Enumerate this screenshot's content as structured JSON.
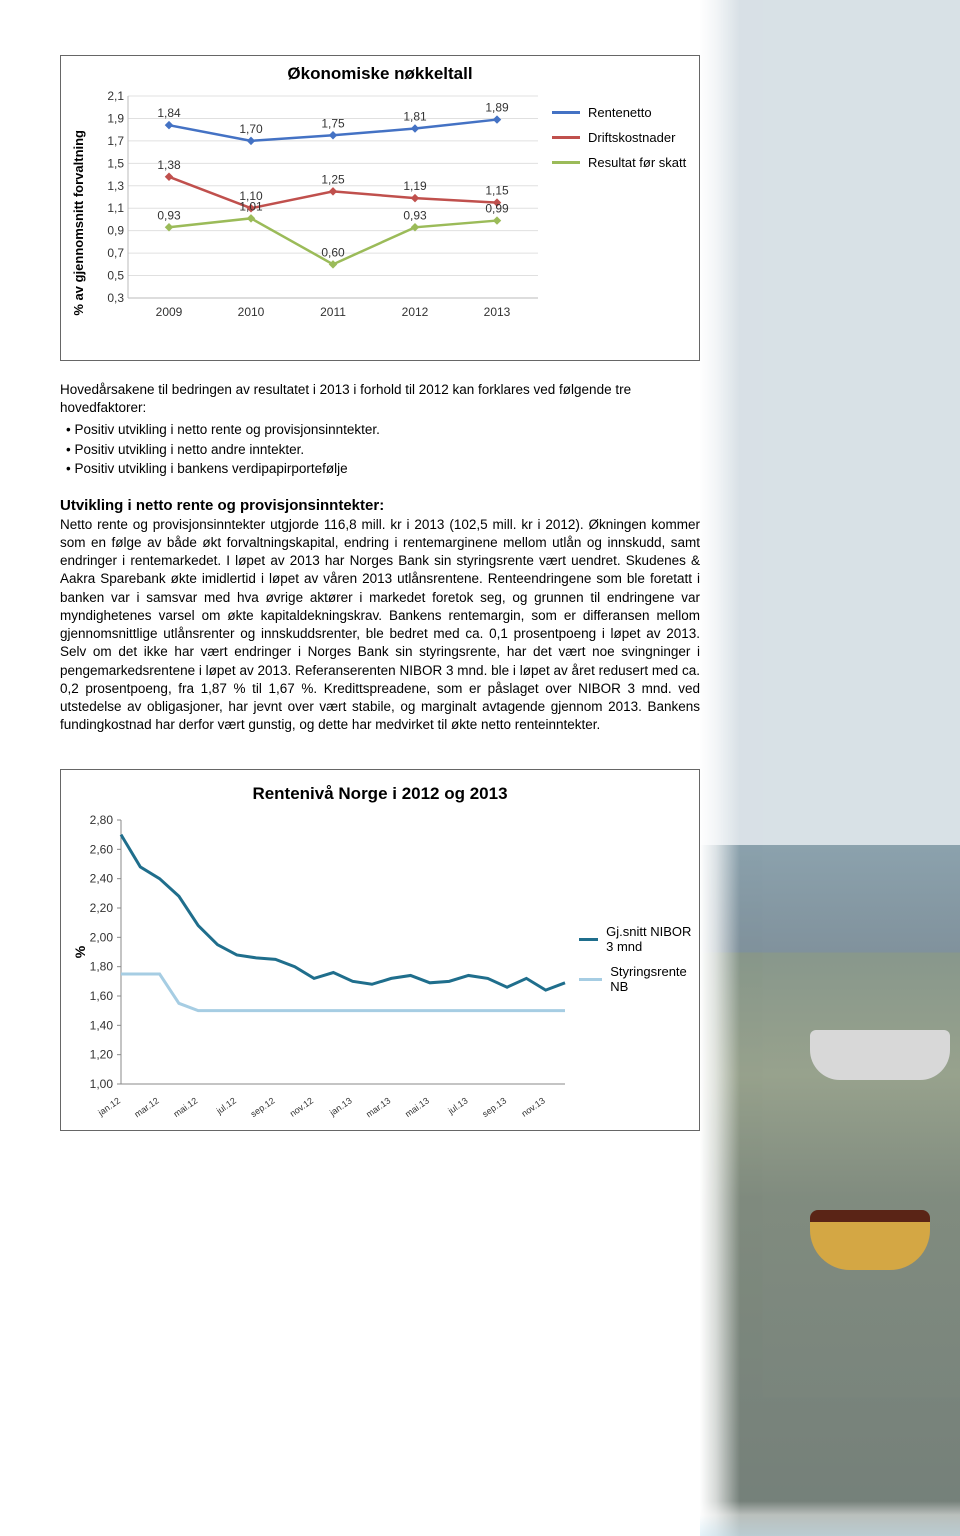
{
  "chart1": {
    "title": "Økonomiske nøkkeltall",
    "ylabel": "% av gjennomsnitt forvaltning",
    "categories": [
      "2009",
      "2010",
      "2011",
      "2012",
      "2013"
    ],
    "ylim": [
      0.3,
      2.1
    ],
    "ytick_step": 0.2,
    "yticks": [
      "2,1",
      "1,9",
      "1,7",
      "1,5",
      "1,3",
      "1,1",
      "0,9",
      "0,7",
      "0,5",
      "0,3"
    ],
    "series": [
      {
        "name": "Rentenetto",
        "color": "#4472c4",
        "values": [
          1.84,
          1.7,
          1.75,
          1.81,
          1.89
        ],
        "labels": [
          "1,84",
          "1,70",
          "1,75",
          "1,81",
          "1,89"
        ]
      },
      {
        "name": "Driftskostnader",
        "color": "#c0504d",
        "values": [
          1.38,
          1.1,
          1.25,
          1.19,
          1.15
        ],
        "labels": [
          "1,38",
          "1,10",
          "1,25",
          "1,19",
          "1,15"
        ]
      },
      {
        "name": "Resultat før skatt",
        "color": "#9bbb59",
        "values": [
          0.93,
          1.01,
          0.6,
          0.93,
          0.99
        ],
        "labels": [
          "0,93",
          "1,01",
          "0,60",
          "0,93",
          "0,99"
        ]
      }
    ],
    "legend_labels": [
      "Rentenetto",
      "Driftskostnader",
      "Resultat før skatt"
    ]
  },
  "intro": "Hovedårsakene til bedringen av resultatet i 2013 i forhold til 2012 kan forklares ved følgende tre hovedfaktorer:",
  "bullets": [
    "Positiv utvikling i netto rente og provisjonsinntekter.",
    "Positiv utvikling i netto andre inntekter.",
    "Positiv utvikling i bankens verdipapirportefølje"
  ],
  "section": {
    "heading": "Utvikling i netto rente og provisjonsinntekter:",
    "body": "Netto rente og provisjonsinntekter utgjorde 116,8 mill. kr i 2013 (102,5 mill. kr i 2012). Økningen kommer som en følge av både økt forvaltningskapital, endring i rentemarginene mellom utlån og innskudd, samt endringer i rentemarkedet. I løpet av 2013 har Norges Bank sin styringsrente vært uendret. Skudenes & Aakra Sparebank økte imidlertid i løpet av våren 2013 utlånsrentene. Renteendringene som ble foretatt i banken var i samsvar med hva øvrige aktører i markedet foretok seg, og grunnen til endringene var myndighetenes varsel om økte kapitaldekningskrav. Bankens rentemargin, som er differansen mellom gjennomsnittlige utlånsrenter og innskuddsrenter, ble bedret med ca. 0,1 prosentpoeng i løpet av 2013. Selv om det ikke har vært endringer i Norges Bank sin styringsrente, har det vært noe svingninger i pengemarkedsrentene i løpet av 2013. Referanserenten NIBOR 3 mnd. ble i løpet av året redusert med ca. 0,2 prosentpoeng, fra 1,87 % til 1,67 %. Kredittspreadene, som er påslaget over NIBOR 3 mnd. ved utstedelse av obligasjoner, har jevnt over vært stabile, og marginalt avtagende gjennom 2013. Bankens fundingkostnad har derfor vært gunstig, og dette har medvirket til økte netto renteinntekter."
  },
  "chart2": {
    "title": "Rentenivå Norge i 2012 og 2013",
    "ylabel": "%",
    "ylim": [
      1.0,
      2.8
    ],
    "yticks": [
      "2,80",
      "2,60",
      "2,40",
      "2,20",
      "2,00",
      "1,80",
      "1,60",
      "1,40",
      "1,20",
      "1,00"
    ],
    "xlabels": [
      "jan.12",
      "mar.12",
      "mai.12",
      "jul.12",
      "sep.12",
      "nov.12",
      "jan.13",
      "mar.13",
      "mai.13",
      "jul.13",
      "sep.13",
      "nov.13"
    ],
    "series": [
      {
        "name": "Gj.snitt NIBOR 3 mnd",
        "color": "#1f6e8c",
        "values": [
          2.7,
          2.48,
          2.4,
          2.28,
          2.08,
          1.95,
          1.88,
          1.86,
          1.85,
          1.8,
          1.72,
          1.76,
          1.7,
          1.68,
          1.72,
          1.74,
          1.69,
          1.7,
          1.74,
          1.72,
          1.66,
          1.72,
          1.64,
          1.69
        ]
      },
      {
        "name": "Styringsrente NB",
        "color": "#a6cde3",
        "values": [
          1.75,
          1.75,
          1.75,
          1.55,
          1.5,
          1.5,
          1.5,
          1.5,
          1.5,
          1.5,
          1.5,
          1.5,
          1.5,
          1.5,
          1.5,
          1.5,
          1.5,
          1.5,
          1.5,
          1.5,
          1.5,
          1.5,
          1.5,
          1.5
        ]
      }
    ],
    "legend_labels": [
      "Gj.snitt NIBOR 3 mnd",
      "Styringsrente NB"
    ]
  }
}
